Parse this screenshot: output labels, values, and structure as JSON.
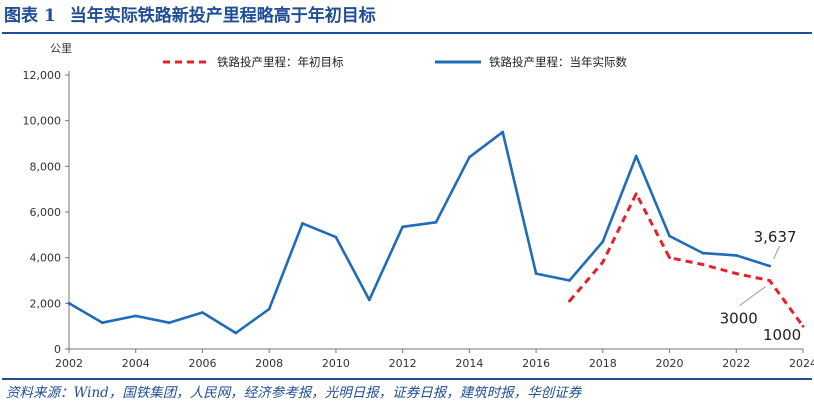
{
  "header": {
    "figure_label": "图表 1",
    "title": "当年实际铁路新投产里程略高于年初目标"
  },
  "source": "资料来源：Wind，国铁集团，人民网，经济参考报，光明日报，证券日报，建筑时报，华创证券",
  "colors": {
    "brand": "#1f4e96",
    "actual": "#1f6db8",
    "target": "#e8202a"
  },
  "chart_data": {
    "type": "line",
    "unit_label": "公里",
    "ylim": [
      0,
      12000
    ],
    "y_ticks": [
      "0",
      "2,000",
      "4,000",
      "6,000",
      "8,000",
      "10,000",
      "12,000"
    ],
    "y_tick_values": [
      0,
      2000,
      4000,
      6000,
      8000,
      10000,
      12000
    ],
    "xlim": [
      2002,
      2024
    ],
    "x_ticks": [
      "2002",
      "2004",
      "2006",
      "2008",
      "2010",
      "2012",
      "2014",
      "2016",
      "2018",
      "2020",
      "2022",
      "2024"
    ],
    "x_tick_values": [
      2002,
      2004,
      2006,
      2008,
      2010,
      2012,
      2014,
      2016,
      2018,
      2020,
      2022,
      2024
    ],
    "legend_position": "top",
    "series": [
      {
        "name": "铁路投产里程：年初目标",
        "style": "dashed",
        "color": "#e8202a",
        "x": [
          2017,
          2018,
          2019,
          2020,
          2021,
          2022,
          2023,
          2024
        ],
        "values": [
          2100,
          3800,
          6800,
          4000,
          3700,
          3300,
          3000,
          1000
        ]
      },
      {
        "name": "铁路投产里程：当年实际数",
        "style": "solid",
        "color": "#1f6db8",
        "x": [
          2002,
          2003,
          2004,
          2005,
          2006,
          2007,
          2008,
          2009,
          2010,
          2011,
          2012,
          2013,
          2014,
          2015,
          2016,
          2017,
          2018,
          2019,
          2020,
          2021,
          2022,
          2023
        ],
        "values": [
          2000,
          1150,
          1450,
          1150,
          1600,
          700,
          1750,
          5500,
          4900,
          2150,
          5350,
          5550,
          8400,
          9500,
          3300,
          3000,
          4700,
          8450,
          4950,
          4200,
          4100,
          3637
        ]
      }
    ],
    "annotations": [
      {
        "text": "3,637",
        "x": 2023,
        "y": 3637
      },
      {
        "text": "3000",
        "x": 2023,
        "y": 3000
      },
      {
        "text": "1000",
        "x": 2024,
        "y": 1000
      }
    ]
  }
}
